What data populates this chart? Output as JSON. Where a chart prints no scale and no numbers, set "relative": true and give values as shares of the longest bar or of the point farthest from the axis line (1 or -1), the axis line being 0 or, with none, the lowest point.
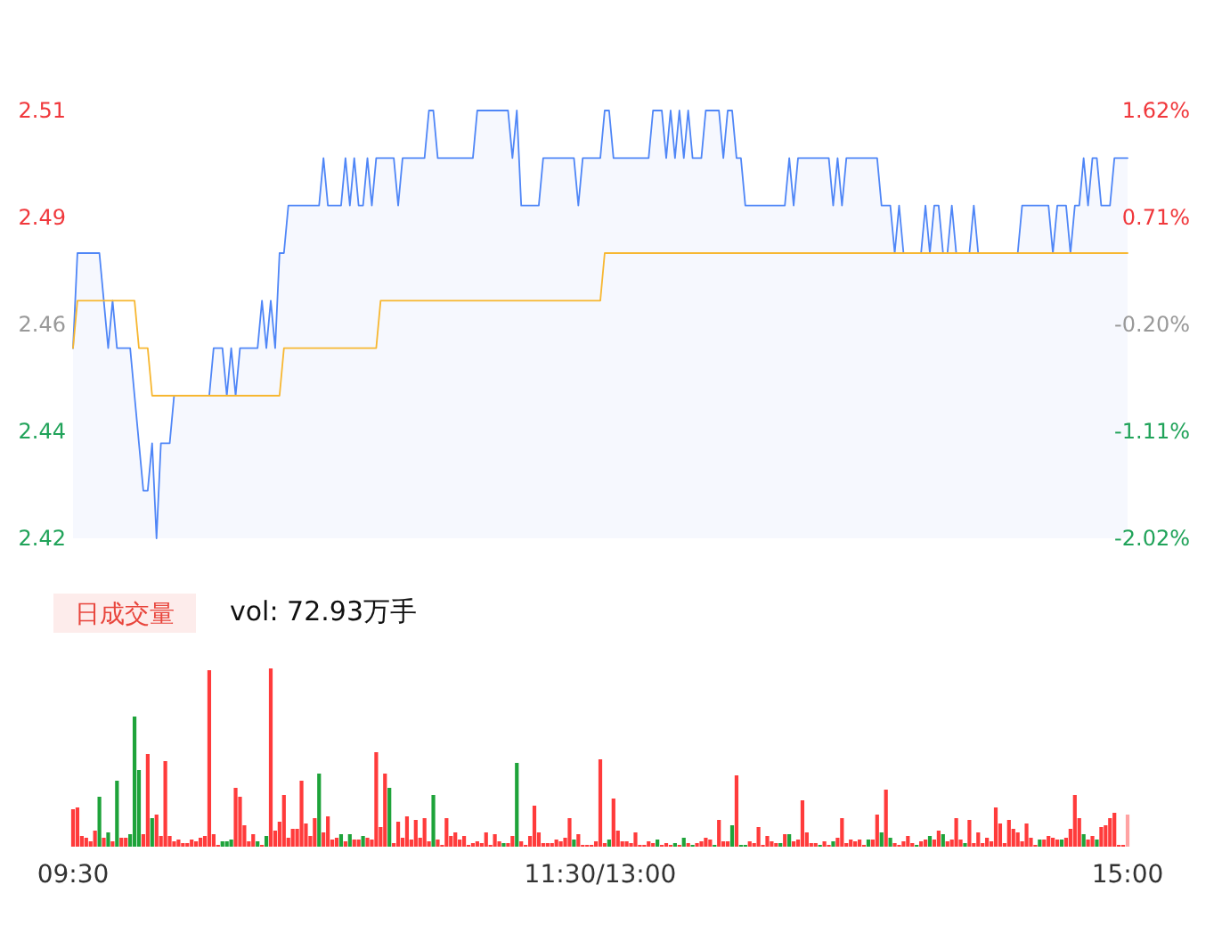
{
  "chart_data": [
    {
      "type": "line",
      "categories": [
        null,
        null,
        null,
        null,
        null,
        null,
        null,
        null,
        null,
        null,
        null,
        null,
        null,
        null,
        null,
        null,
        null,
        null,
        null,
        null,
        null,
        null,
        null,
        null,
        null,
        null,
        null,
        null,
        null,
        null,
        null,
        null,
        null,
        null,
        null,
        null,
        null,
        null,
        null,
        null,
        null,
        null,
        null,
        null,
        null,
        null,
        null,
        null,
        null,
        null,
        null,
        null,
        null,
        null,
        null,
        null,
        null,
        null,
        null,
        null,
        null,
        null,
        null,
        null,
        null,
        null,
        null,
        null,
        null,
        null,
        null,
        null,
        null,
        null,
        null,
        null,
        null,
        null,
        null,
        null,
        null,
        null,
        null,
        null,
        null,
        null,
        null,
        null,
        null,
        null,
        null,
        null,
        null,
        null,
        null,
        null,
        null,
        null,
        null,
        null,
        null,
        null,
        null,
        null,
        null,
        null,
        null,
        null,
        null,
        null,
        null,
        null,
        null,
        null,
        null,
        null,
        null,
        null,
        null,
        null,
        null,
        null,
        null,
        null,
        null,
        null,
        null,
        null,
        null,
        null,
        null,
        null,
        null,
        null,
        null,
        null,
        null,
        null,
        null,
        null,
        null,
        null,
        null,
        null,
        null,
        null,
        null,
        null,
        null,
        null,
        null,
        null,
        null,
        null,
        null,
        null,
        null,
        null,
        null,
        null,
        null,
        null,
        null,
        null,
        null,
        null,
        null,
        null,
        null,
        null,
        null,
        null,
        null,
        null,
        null,
        null,
        null,
        null,
        null,
        null,
        null,
        null,
        null,
        null,
        null,
        null,
        null,
        null,
        null,
        null,
        null,
        null,
        null,
        null,
        null,
        null,
        null,
        null,
        null,
        null,
        null,
        null,
        null,
        null,
        null,
        null,
        null,
        null,
        null,
        null,
        null,
        null,
        null,
        null,
        null,
        null,
        null,
        null,
        null,
        null,
        null,
        null,
        null,
        null,
        null,
        null,
        null,
        null,
        null,
        null,
        null,
        null,
        null,
        null,
        null,
        null,
        null,
        null,
        null,
        null,
        null
      ],
      "series": [
        {
          "type": "area",
          "color": "#4f86f7",
          "values": [
            2.46,
            2.48,
            2.48,
            2.48,
            2.48,
            2.48,
            2.48,
            2.47,
            2.46,
            2.47,
            2.46,
            2.46,
            2.46,
            2.46,
            2.45,
            2.44,
            2.43,
            2.43,
            2.44,
            2.42,
            2.44,
            2.44,
            2.44,
            2.45,
            2.45,
            2.45,
            2.45,
            2.45,
            2.45,
            2.45,
            2.45,
            2.45,
            2.46,
            2.46,
            2.46,
            2.45,
            2.46,
            2.45,
            2.46,
            2.46,
            2.46,
            2.46,
            2.46,
            2.47,
            2.46,
            2.47,
            2.46,
            2.48,
            2.48,
            2.49,
            2.49,
            2.49,
            2.49,
            2.49,
            2.49,
            2.49,
            2.49,
            2.5,
            2.49,
            2.49,
            2.49,
            2.49,
            2.5,
            2.49,
            2.5,
            2.49,
            2.49,
            2.5,
            2.49,
            2.5,
            2.5,
            2.5,
            2.5,
            2.5,
            2.49,
            2.5,
            2.5,
            2.5,
            2.5,
            2.5,
            2.5,
            2.51,
            2.51,
            2.5,
            2.5,
            2.5,
            2.5,
            2.5,
            2.5,
            2.5,
            2.5,
            2.5,
            2.51,
            2.51,
            2.51,
            2.51,
            2.51,
            2.51,
            2.51,
            2.51,
            2.5,
            2.51,
            2.49,
            2.49,
            2.49,
            2.49,
            2.49,
            2.5,
            2.5,
            2.5,
            2.5,
            2.5,
            2.5,
            2.5,
            2.5,
            2.49,
            2.5,
            2.5,
            2.5,
            2.5,
            2.5,
            2.51,
            2.51,
            2.5,
            2.5,
            2.5,
            2.5,
            2.5,
            2.5,
            2.5,
            2.5,
            2.5,
            2.51,
            2.51,
            2.51,
            2.5,
            2.51,
            2.5,
            2.51,
            2.5,
            2.51,
            2.5,
            2.5,
            2.5,
            2.51,
            2.51,
            2.51,
            2.51,
            2.5,
            2.51,
            2.51,
            2.5,
            2.5,
            2.49,
            2.49,
            2.49,
            2.49,
            2.49,
            2.49,
            2.49,
            2.49,
            2.49,
            2.49,
            2.5,
            2.49,
            2.5,
            2.5,
            2.5,
            2.5,
            2.5,
            2.5,
            2.5,
            2.5,
            2.49,
            2.5,
            2.49,
            2.5,
            2.5,
            2.5,
            2.5,
            2.5,
            2.5,
            2.5,
            2.5,
            2.49,
            2.49,
            2.49,
            2.48,
            2.49,
            2.48,
            2.48,
            2.48,
            2.48,
            2.48,
            2.49,
            2.48,
            2.49,
            2.49,
            2.48,
            2.48,
            2.49,
            2.48,
            2.48,
            2.48,
            2.48,
            2.49,
            2.48,
            2.48,
            2.48,
            2.48,
            2.48,
            2.48,
            2.48,
            2.48,
            2.48,
            2.48,
            2.49,
            2.49,
            2.49,
            2.49,
            2.49,
            2.49,
            2.49,
            2.48,
            2.49,
            2.49,
            2.49,
            2.48,
            2.49,
            2.49,
            2.5,
            2.49,
            2.5,
            2.5,
            2.49,
            2.49,
            2.49,
            2.5,
            2.5,
            2.5,
            2.5
          ]
        },
        {
          "type": "line",
          "color": "#f7b731",
          "values": [
            2.46,
            2.47,
            2.47,
            2.47,
            2.47,
            2.47,
            2.47,
            2.47,
            2.47,
            2.47,
            2.47,
            2.47,
            2.47,
            2.47,
            2.47,
            2.46,
            2.46,
            2.46,
            2.45,
            2.45,
            2.45,
            2.45,
            2.45,
            2.45,
            2.45,
            2.45,
            2.45,
            2.45,
            2.45,
            2.45,
            2.45,
            2.45,
            2.45,
            2.45,
            2.45,
            2.45,
            2.45,
            2.45,
            2.45,
            2.45,
            2.45,
            2.45,
            2.45,
            2.45,
            2.45,
            2.45,
            2.45,
            2.45,
            2.46,
            2.46,
            2.46,
            2.46,
            2.46,
            2.46,
            2.46,
            2.46,
            2.46,
            2.46,
            2.46,
            2.46,
            2.46,
            2.46,
            2.46,
            2.46,
            2.46,
            2.46,
            2.46,
            2.46,
            2.46,
            2.46,
            2.47,
            2.47,
            2.47,
            2.47,
            2.47,
            2.47,
            2.47,
            2.47,
            2.47,
            2.47,
            2.47,
            2.47,
            2.47,
            2.47,
            2.47,
            2.47,
            2.47,
            2.47,
            2.47,
            2.47,
            2.47,
            2.47,
            2.47,
            2.47,
            2.47,
            2.47,
            2.47,
            2.47,
            2.47,
            2.47,
            2.47,
            2.47,
            2.47,
            2.47,
            2.47,
            2.47,
            2.47,
            2.47,
            2.47,
            2.47,
            2.47,
            2.47,
            2.47,
            2.47,
            2.47,
            2.47,
            2.47,
            2.47,
            2.47,
            2.47,
            2.47,
            2.48,
            2.48,
            2.48,
            2.48,
            2.48,
            2.48,
            2.48,
            2.48,
            2.48,
            2.48,
            2.48,
            2.48,
            2.48,
            2.48,
            2.48,
            2.48,
            2.48,
            2.48,
            2.48,
            2.48,
            2.48,
            2.48,
            2.48,
            2.48,
            2.48,
            2.48,
            2.48,
            2.48,
            2.48,
            2.48,
            2.48,
            2.48,
            2.48,
            2.48,
            2.48,
            2.48,
            2.48,
            2.48,
            2.48,
            2.48,
            2.48,
            2.48,
            2.48,
            2.48,
            2.48,
            2.48,
            2.48,
            2.48,
            2.48,
            2.48,
            2.48,
            2.48,
            2.48,
            2.48,
            2.48,
            2.48,
            2.48,
            2.48,
            2.48,
            2.48,
            2.48,
            2.48,
            2.48,
            2.48,
            2.48,
            2.48,
            2.48,
            2.48,
            2.48,
            2.48,
            2.48,
            2.48,
            2.48,
            2.48,
            2.48,
            2.48,
            2.48,
            2.48,
            2.48,
            2.48,
            2.48,
            2.48,
            2.48,
            2.48,
            2.48,
            2.48,
            2.48,
            2.48,
            2.48,
            2.48,
            2.48,
            2.48,
            2.48,
            2.48,
            2.48,
            2.48,
            2.48,
            2.48,
            2.48,
            2.48,
            2.48,
            2.48,
            2.48,
            2.48,
            2.48,
            2.48,
            2.48,
            2.48,
            2.48,
            2.48,
            2.48,
            2.48,
            2.48,
            2.48,
            2.48,
            2.48,
            2.48,
            2.48,
            2.48,
            2.48
          ]
        }
      ],
      "ylim": [
        2.42,
        2.51
      ],
      "yticks": [
        2.42,
        {
          "value": 2.4425,
          "label": "2.44"
        },
        {
          "value": 2.465,
          "label": "2.46"
        },
        {
          "value": 2.4875,
          "label": "2.49"
        },
        2.51
      ],
      "y2lim": [
        -2.02,
        1.62
      ],
      "y2ticks": [
        {
          "value": -2.02,
          "label": "-2.02%"
        },
        {
          "value": -1.11,
          "label": "-1.11%"
        },
        {
          "value": -0.2,
          "label": "-0.20%"
        },
        {
          "value": 0.71,
          "label": "0.71%"
        },
        {
          "value": 1.62,
          "label": "1.62%"
        }
      ],
      "tick_labels": "y"
    },
    {
      "type": "bar",
      "title": "日成交量",
      "annotations": [
        "vol: 72.93万手"
      ],
      "relative": true,
      "categories": [
        "09:30",
        null,
        null,
        null,
        null,
        null,
        null,
        null,
        null,
        null,
        null,
        null,
        null,
        null,
        null,
        null,
        null,
        null,
        null,
        null,
        null,
        null,
        null,
        null,
        null,
        null,
        null,
        null,
        null,
        null,
        null,
        null,
        null,
        null,
        null,
        null,
        null,
        null,
        null,
        null,
        null,
        null,
        null,
        null,
        null,
        null,
        null,
        null,
        null,
        null,
        null,
        null,
        null,
        null,
        null,
        null,
        null,
        null,
        null,
        null,
        null,
        null,
        null,
        null,
        null,
        null,
        null,
        null,
        null,
        null,
        null,
        null,
        null,
        null,
        null,
        null,
        null,
        null,
        null,
        null,
        null,
        null,
        null,
        null,
        null,
        null,
        null,
        null,
        null,
        null,
        null,
        null,
        null,
        null,
        null,
        null,
        null,
        null,
        null,
        null,
        null,
        null,
        null,
        null,
        null,
        null,
        null,
        null,
        null,
        null,
        null,
        null,
        null,
        null,
        null,
        null,
        null,
        null,
        null,
        null,
        "11:30/13:00",
        null,
        null,
        null,
        null,
        null,
        null,
        null,
        null,
        null,
        null,
        null,
        null,
        null,
        null,
        null,
        null,
        null,
        null,
        null,
        null,
        null,
        null,
        null,
        null,
        null,
        null,
        null,
        null,
        null,
        null,
        null,
        null,
        null,
        null,
        null,
        null,
        null,
        null,
        null,
        null,
        null,
        null,
        null,
        null,
        null,
        null,
        null,
        null,
        null,
        null,
        null,
        null,
        null,
        null,
        null,
        null,
        null,
        null,
        null,
        null,
        null,
        null,
        null,
        null,
        null,
        null,
        null,
        null,
        null,
        null,
        null,
        null,
        null,
        null,
        null,
        null,
        null,
        null,
        null,
        null,
        null,
        null,
        null,
        null,
        null,
        null,
        null,
        null,
        null,
        null,
        null,
        null,
        null,
        null,
        null,
        null,
        null,
        null,
        null,
        null,
        null,
        null,
        null,
        null,
        null,
        null,
        null,
        null,
        null,
        null,
        null,
        null,
        null,
        null,
        null,
        null,
        null,
        null,
        null,
        "15:00"
      ],
      "values": [
        0.21,
        0.22,
        0.06,
        0.05,
        0.03,
        0.09,
        0.28,
        0.05,
        0.08,
        0.03,
        0.37,
        0.05,
        0.05,
        0.07,
        0.73,
        0.43,
        0.07,
        0.52,
        0.16,
        0.18,
        0.06,
        0.48,
        0.06,
        0.03,
        0.04,
        0.02,
        0.02,
        0.04,
        0.03,
        0.05,
        0.06,
        0.99,
        0.07,
        0.01,
        0.03,
        0.03,
        0.04,
        0.33,
        0.28,
        0.12,
        0.03,
        0.07,
        0.03,
        0.01,
        0.06,
        1,
        0.09,
        0.14,
        0.29,
        0.05,
        0.1,
        0.1,
        0.37,
        0.13,
        0.06,
        0.16,
        0.41,
        0.08,
        0.17,
        0.04,
        0.05,
        0.07,
        0.03,
        0.07,
        0.04,
        0.04,
        0.06,
        0.05,
        0.04,
        0.53,
        0.11,
        0.41,
        0.33,
        0.02,
        0.14,
        0.05,
        0.17,
        0.04,
        0.15,
        0.05,
        0.16,
        0.03,
        0.29,
        0.04,
        0.01,
        0.16,
        0.06,
        0.08,
        0.04,
        0.06,
        0.01,
        0.02,
        0.03,
        0.02,
        0.08,
        0.01,
        0.07,
        0.03,
        0.02,
        0.02,
        0.06,
        0.47,
        0.03,
        0.01,
        0.06,
        0.23,
        0.08,
        0.02,
        0.02,
        0.02,
        0.04,
        0.03,
        0.05,
        0.16,
        0.04,
        0.07,
        0.01,
        0.01,
        0.01,
        0.03,
        0.49,
        0.02,
        0.04,
        0.27,
        0.09,
        0.03,
        0.03,
        0.02,
        0.08,
        0.01,
        0.01,
        0.03,
        0.02,
        0.04,
        0.01,
        0.02,
        0.01,
        0.02,
        0.01,
        0.05,
        0.02,
        0.01,
        0.02,
        0.03,
        0.05,
        0.04,
        0.01,
        0.15,
        0.03,
        0.03,
        0.12,
        0.4,
        0.01,
        0.01,
        0.03,
        0.02,
        0.11,
        0.01,
        0.06,
        0.03,
        0.02,
        0.02,
        0.07,
        0.07,
        0.03,
        0.04,
        0.26,
        0.08,
        0.02,
        0.02,
        0.01,
        0.03,
        0.01,
        0.03,
        0.05,
        0.16,
        0.02,
        0.04,
        0.03,
        0.04,
        0.01,
        0.04,
        0.04,
        0.18,
        0.08,
        0.32,
        0.05,
        0.02,
        0.01,
        0.03,
        0.06,
        0.02,
        0.01,
        0.03,
        0.04,
        0.06,
        0.04,
        0.09,
        0.07,
        0.03,
        0.04,
        0.16,
        0.04,
        0.02,
        0.15,
        0.02,
        0.08,
        0.02,
        0.05,
        0.03,
        0.22,
        0.13,
        0.02,
        0.15,
        0.1,
        0.08,
        0.03,
        0.13,
        0.05,
        0.01,
        0.04,
        0.04,
        0.06,
        0.05,
        0.04,
        0.04,
        0.05,
        0.1,
        0.29,
        0.16,
        0.07,
        0.04,
        0.06,
        0.04,
        0.11,
        0.12,
        0.16,
        0.19,
        0.01,
        0.01,
        0.18
      ],
      "colors": [
        "#ff3b3b",
        "#ff3b3b",
        "#ff3b3b",
        "#ff3b3b",
        "#ff3b3b",
        "#ff3b3b",
        "#1ea33a",
        "#ff3b3b",
        "#1ea33a",
        "#ff3b3b",
        "#1ea33a",
        "#ff3b3b",
        "#ff3b3b",
        "#1ea33a",
        "#1ea33a",
        "#1ea33a",
        "#ff3b3b",
        "#ff3b3b",
        "#1ea33a",
        "#ff3b3b",
        "#ff3b3b",
        "#ff3b3b",
        "#ff3b3b",
        "#ff3b3b",
        "#ff3b3b",
        "#ff3b3b",
        "#ff3b3b",
        "#ff3b3b",
        "#ff3b3b",
        "#ff3b3b",
        "#ff3b3b",
        "#ff3b3b",
        "#ff3b3b",
        "#ff3b3b",
        "#1ea33a",
        "#1ea33a",
        "#1ea33a",
        "#ff3b3b",
        "#ff3b3b",
        "#ff3b3b",
        "#ff3b3b",
        "#ff3b3b",
        "#1ea33a",
        "#ff3b3b",
        "#1ea33a",
        "#ff3b3b",
        "#ff3b3b",
        "#ff3b3b",
        "#ff3b3b",
        "#ff3b3b",
        "#ff3b3b",
        "#ff3b3b",
        "#ff3b3b",
        "#ff3b3b",
        "#ff3b3b",
        "#ff3b3b",
        "#1ea33a",
        "#ff3b3b",
        "#ff3b3b",
        "#ff3b3b",
        "#ff3b3b",
        "#1ea33a",
        "#ff3b3b",
        "#1ea33a",
        "#ff3b3b",
        "#ff3b3b",
        "#1ea33a",
        "#ff3b3b",
        "#ff3b3b",
        "#ff3b3b",
        "#ff3b3b",
        "#ff3b3b",
        "#1ea33a",
        "#ff3b3b",
        "#ff3b3b",
        "#ff3b3b",
        "#ff3b3b",
        "#ff3b3b",
        "#ff3b3b",
        "#ff3b3b",
        "#ff3b3b",
        "#ff3b3b",
        "#1ea33a",
        "#ff3b3b",
        "#ff3b3b",
        "#ff3b3b",
        "#ff3b3b",
        "#ff3b3b",
        "#ff3b3b",
        "#ff3b3b",
        "#ff3b3b",
        "#ff3b3b",
        "#ff3b3b",
        "#ff3b3b",
        "#ff3b3b",
        "#ff3b3b",
        "#ff3b3b",
        "#ff3b3b",
        "#1ea33a",
        "#ff3b3b",
        "#ff3b3b",
        "#1ea33a",
        "#ff3b3b",
        "#ff3b3b",
        "#ff3b3b",
        "#ff3b3b",
        "#ff3b3b",
        "#ff3b3b",
        "#ff3b3b",
        "#ff3b3b",
        "#ff3b3b",
        "#ff3b3b",
        "#ff3b3b",
        "#ff3b3b",
        "#1ea33a",
        "#ff3b3b",
        "#ff3b3b",
        "#ff3b3b",
        "#ff3b3b",
        "#ff3b3b",
        "#ff3b3b",
        "#ff3b3b",
        "#1ea33a",
        "#ff3b3b",
        "#ff3b3b",
        "#ff3b3b",
        "#ff3b3b",
        "#ff3b3b",
        "#ff3b3b",
        "#ff3b3b",
        "#ff3b3b",
        "#ff3b3b",
        "#ff3b3b",
        "#1ea33a",
        "#ff3b3b",
        "#ff3b3b",
        "#ff3b3b",
        "#1ea33a",
        "#ff3b3b",
        "#1ea33a",
        "#ff3b3b",
        "#1ea33a",
        "#ff3b3b",
        "#ff3b3b",
        "#ff3b3b",
        "#ff3b3b",
        "#1ea33a",
        "#ff3b3b",
        "#ff3b3b",
        "#ff3b3b",
        "#1ea33a",
        "#ff3b3b",
        "#1ea33a",
        "#1ea33a",
        "#ff3b3b",
        "#ff3b3b",
        "#ff3b3b",
        "#ff3b3b",
        "#ff3b3b",
        "#ff3b3b",
        "#ff3b3b",
        "#1ea33a",
        "#ff3b3b",
        "#1ea33a",
        "#ff3b3b",
        "#ff3b3b",
        "#ff3b3b",
        "#ff3b3b",
        "#ff3b3b",
        "#ff3b3b",
        "#1ea33a",
        "#ff3b3b",
        "#ff3b3b",
        "#1ea33a",
        "#ff3b3b",
        "#ff3b3b",
        "#ff3b3b",
        "#ff3b3b",
        "#ff3b3b",
        "#ff3b3b",
        "#ff3b3b",
        "#1ea33a",
        "#ff3b3b",
        "#ff3b3b",
        "#1ea33a",
        "#ff3b3b",
        "#1ea33a",
        "#ff3b3b",
        "#ff3b3b",
        "#ff3b3b",
        "#ff3b3b",
        "#ff3b3b",
        "#1ea33a",
        "#ff3b3b",
        "#ff3b3b",
        "#1ea33a",
        "#ff3b3b",
        "#ff3b3b",
        "#1ea33a",
        "#ff3b3b",
        "#ff3b3b",
        "#ff3b3b",
        "#ff3b3b",
        "#1ea33a",
        "#ff3b3b",
        "#ff3b3b",
        "#ff3b3b",
        "#ff3b3b",
        "#ff3b3b",
        "#ff3b3b",
        "#ff3b3b",
        "#ff3b3b",
        "#ff3b3b",
        "#ff3b3b",
        "#ff3b3b",
        "#ff3b3b",
        "#ff3b3b",
        "#ff3b3b",
        "#ff3b3b",
        "#ff3b3b",
        "#1ea33a",
        "#ff3b3b",
        "#ff3b3b",
        "#ff3b3b",
        "#ff3b3b",
        "#1ea33a",
        "#ff3b3b",
        "#ff3b3b",
        "#ff3b3b",
        "#ff3b3b",
        "#1ea33a",
        "#ff3b3b",
        "#ff3b3b",
        "#1ea33a",
        "#ff3b3b",
        "#ff3b3b",
        "#ff3b3b",
        "#ff3b3b",
        "#ff3b3b",
        "#ff3b3b",
        "#ffa3a3"
      ],
      "tick_labels": "x"
    }
  ]
}
